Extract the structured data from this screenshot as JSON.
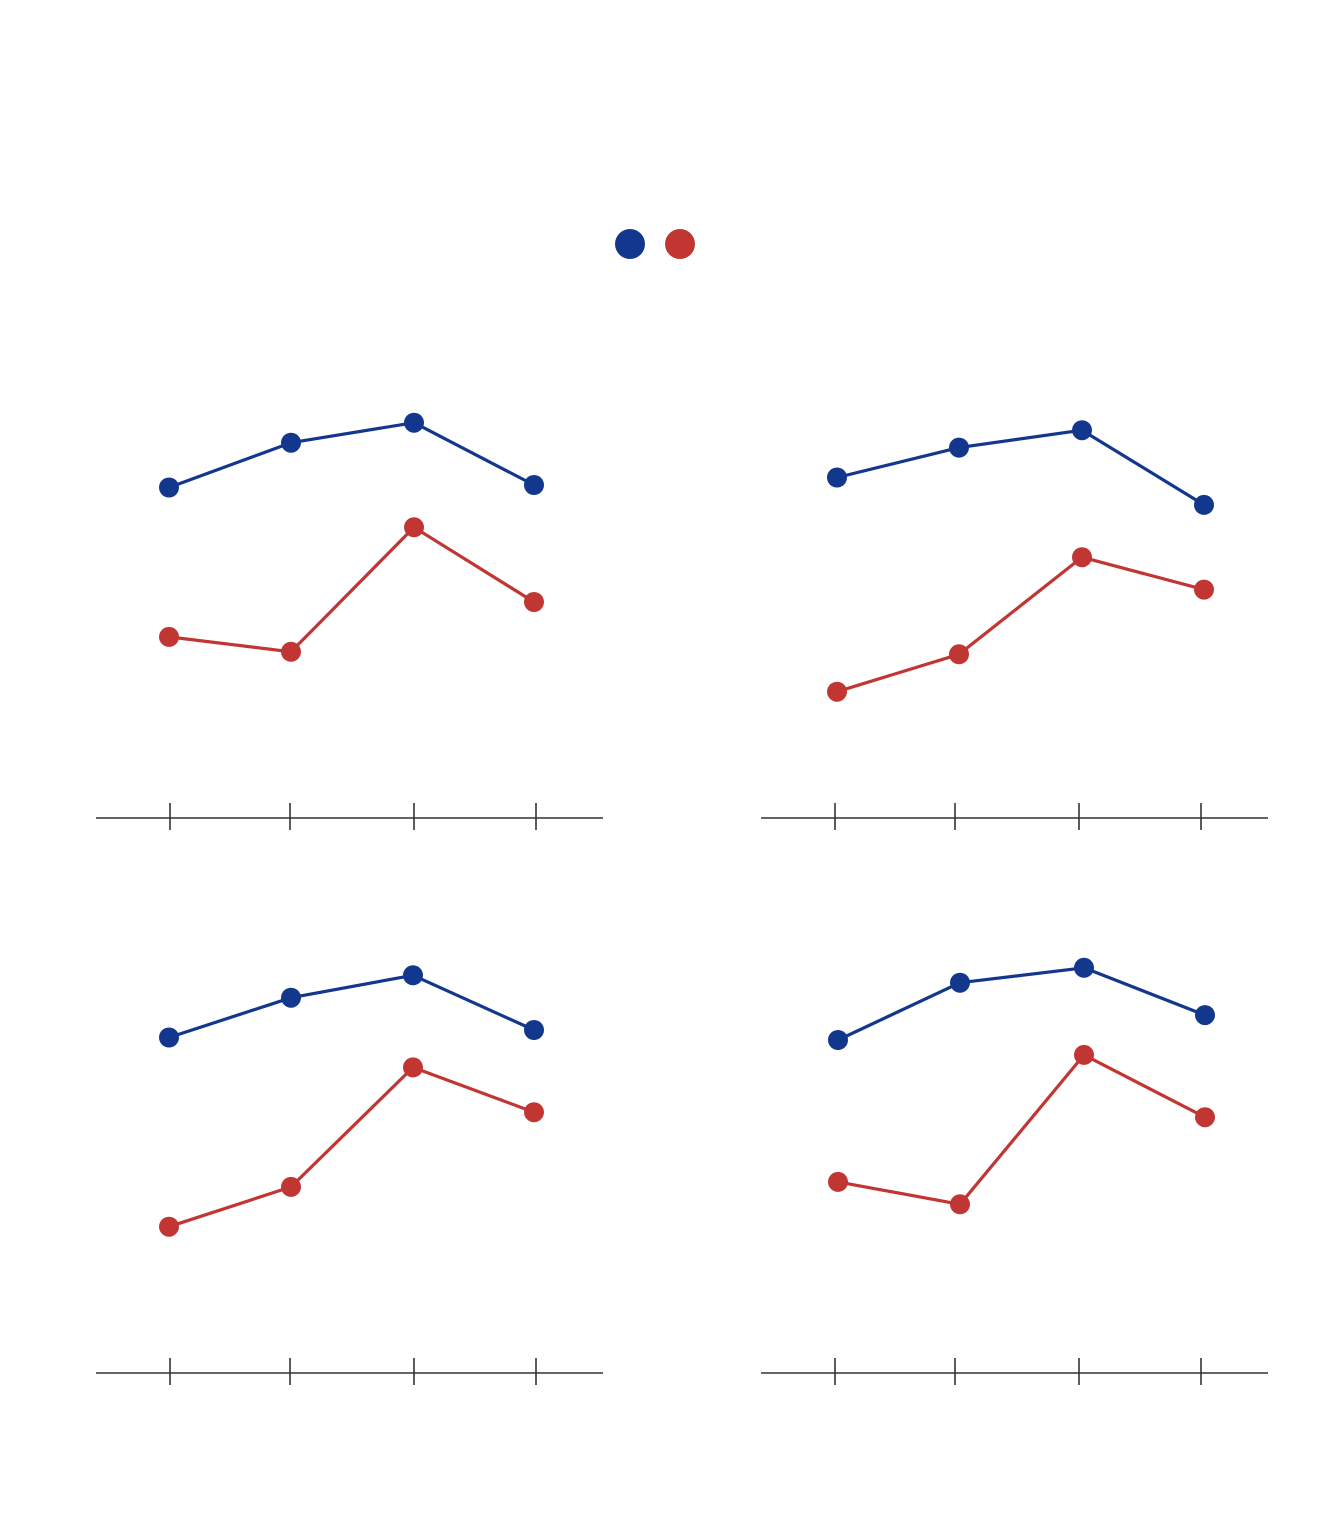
{
  "colors": {
    "series_a": "#12378c",
    "series_b": "#c13633",
    "axis": "#333333"
  },
  "legend": {
    "placement": "top-center",
    "entries": [
      {
        "color": "#12378c"
      },
      {
        "color": "#c13633"
      }
    ]
  },
  "chart_data": [
    {
      "type": "line",
      "x": [
        1,
        2,
        3,
        4
      ],
      "ylim": [
        0,
        100
      ],
      "grid": false,
      "series": [
        {
          "values": [
            74,
            83,
            87,
            74.5
          ]
        },
        {
          "values": [
            44,
            41,
            66,
            51
          ]
        }
      ]
    },
    {
      "type": "line",
      "x": [
        1,
        2,
        3,
        4
      ],
      "ylim": [
        0,
        100
      ],
      "grid": false,
      "series": [
        {
          "values": [
            76,
            82,
            85.5,
            70.5
          ]
        },
        {
          "values": [
            33,
            40.5,
            60,
            53.5
          ]
        }
      ]
    },
    {
      "type": "line",
      "x": [
        1,
        2,
        3,
        4
      ],
      "ylim": [
        0,
        100
      ],
      "grid": false,
      "series": [
        {
          "values": [
            75,
            83,
            87.5,
            76.5
          ]
        },
        {
          "values": [
            37,
            45,
            69,
            60
          ]
        }
      ]
    },
    {
      "type": "line",
      "x": [
        1,
        2,
        3,
        4
      ],
      "ylim": [
        0,
        100
      ],
      "grid": false,
      "series": [
        {
          "values": [
            74.5,
            86,
            89,
            79.5
          ]
        },
        {
          "values": [
            46,
            41.5,
            71.5,
            59
          ]
        }
      ]
    }
  ]
}
